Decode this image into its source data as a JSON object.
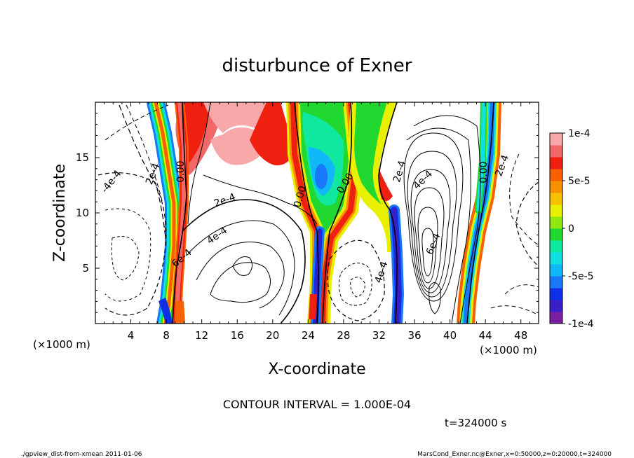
{
  "chart_data": {
    "type": "contour",
    "title": "disturbunce of Exner",
    "xlabel": "X-coordinate",
    "ylabel": "Z-coordinate",
    "x_unit_left": "(×1000 m)",
    "x_unit_right": "(×1000 m)",
    "xlim": [
      0,
      50
    ],
    "ylim": [
      0,
      20
    ],
    "x_ticks": [
      4,
      8,
      12,
      16,
      20,
      24,
      28,
      32,
      36,
      40,
      44,
      48
    ],
    "y_ticks": [
      5,
      10,
      15
    ],
    "colorbar": {
      "range": [
        -0.0001,
        0.0001
      ],
      "tick_labels": [
        "1e-4",
        "5e-5",
        "0",
        "-5e-5",
        "-1e-4"
      ],
      "tick_values": [
        0.0001,
        5e-05,
        0,
        -5e-05,
        -0.0001
      ],
      "colors": [
        "#7b1fa2",
        "#3a1fc8",
        "#1030e8",
        "#1878f8",
        "#10b8f8",
        "#10e0e0",
        "#10e8a0",
        "#20d830",
        "#90e810",
        "#e8f000",
        "#f8c000",
        "#f89000",
        "#f86000",
        "#f02010",
        "#f06868",
        "#f8a8a8"
      ]
    },
    "contour_labels": [
      "-4e-4",
      "2e-4",
      "0.00",
      "2e-4",
      "4e-4",
      "0.00",
      "0.00",
      "2e-4",
      "4e-4",
      "6e-4",
      "0.00",
      "2e-4",
      "4e-4",
      "6e-4"
    ],
    "contour_interval_text": "CONTOUR INTERVAL = 1.000E-04",
    "time_text": "t=324000 s",
    "footer_left": "./gpview_dist-from-xmean  2011-01-06",
    "footer_right": "MarsCond_Exner.nc@Exner,x=0:50000,z=0:20000,t=324000"
  }
}
